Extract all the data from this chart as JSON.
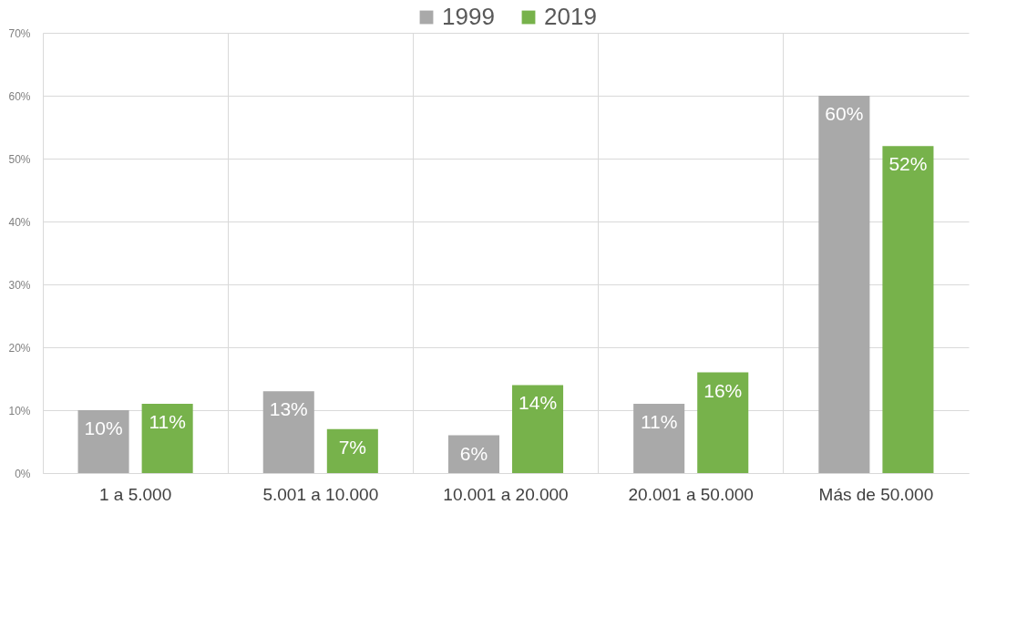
{
  "chart_data": {
    "type": "bar",
    "categories": [
      "1 a 5.000",
      "5.001 a 10.000",
      "10.001 a 20.000",
      "20.001 a 50.000",
      "Más de 50.000"
    ],
    "series": [
      {
        "name": "1999",
        "color": "#a9a9a9",
        "values": [
          10,
          13,
          6,
          11,
          60
        ],
        "value_labels": [
          "10%",
          "13%",
          "6%",
          "11%",
          "60%"
        ]
      },
      {
        "name": "2019",
        "color": "#77b24b",
        "values": [
          11,
          7,
          14,
          16,
          52
        ],
        "value_labels": [
          "11%",
          "7%",
          "14%",
          "16%",
          "52%"
        ]
      }
    ],
    "ylim": [
      0,
      70
    ],
    "yticks": [
      {
        "value": 0,
        "label": "0%"
      },
      {
        "value": 10,
        "label": "10%"
      },
      {
        "value": 20,
        "label": "20%"
      },
      {
        "value": 30,
        "label": "30%"
      },
      {
        "value": 40,
        "label": "40%"
      },
      {
        "value": 50,
        "label": "50%"
      },
      {
        "value": 60,
        "label": "60%"
      },
      {
        "value": 70,
        "label": "70%"
      }
    ],
    "grid": true,
    "legend": "top"
  }
}
